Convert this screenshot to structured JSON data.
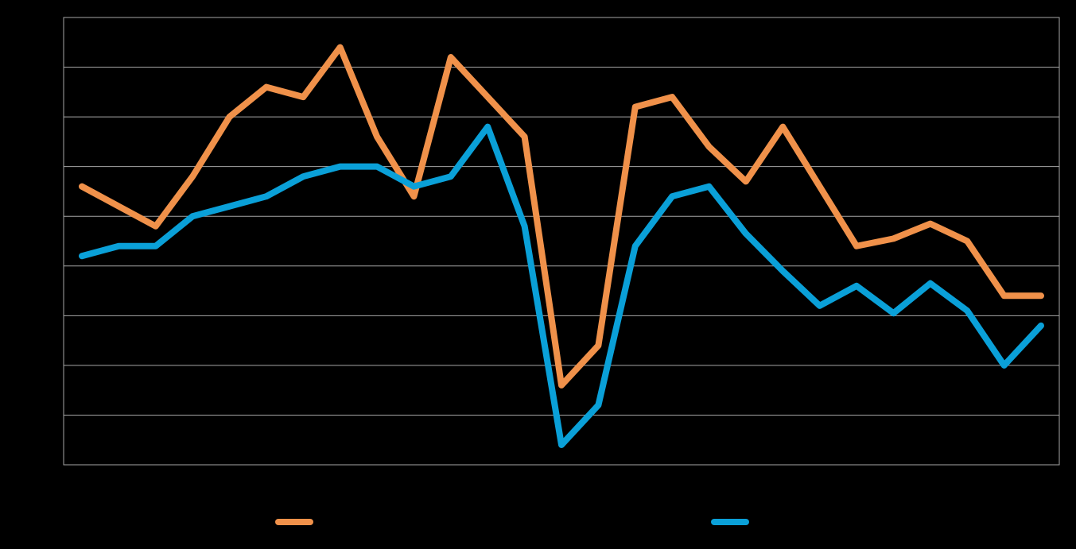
{
  "chart_data": {
    "type": "line",
    "categories": [
      null,
      null,
      null,
      null,
      null,
      null,
      null,
      null,
      null,
      null,
      null,
      null,
      null,
      null,
      null,
      null,
      null,
      null,
      null,
      null,
      null,
      null,
      null,
      null,
      null,
      null,
      null
    ],
    "series": [
      {
        "color": "#f0914a",
        "values": [
          5.6,
          5.2,
          4.8,
          5.8,
          7.0,
          7.6,
          7.4,
          8.4,
          6.6,
          5.4,
          8.2,
          7.4,
          6.6,
          1.6,
          2.4,
          7.2,
          7.4,
          6.4,
          5.7,
          6.8,
          5.6,
          4.4,
          4.55,
          4.85,
          4.5,
          3.4,
          3.4
        ]
      },
      {
        "color": "#0aa0d8",
        "values": [
          4.2,
          4.4,
          4.4,
          5.0,
          5.2,
          5.4,
          5.8,
          6.0,
          6.0,
          5.6,
          5.8,
          6.8,
          4.8,
          0.4,
          1.2,
          4.4,
          5.4,
          5.6,
          4.65,
          3.9,
          3.2,
          3.6,
          3.05,
          3.65,
          3.1,
          2.0,
          2.8
        ]
      }
    ],
    "ylim": [
      0,
      9
    ],
    "yticks": [
      0,
      1,
      2,
      3,
      4,
      5,
      6,
      7,
      8,
      9
    ],
    "grid": true,
    "legend": "bottom"
  }
}
